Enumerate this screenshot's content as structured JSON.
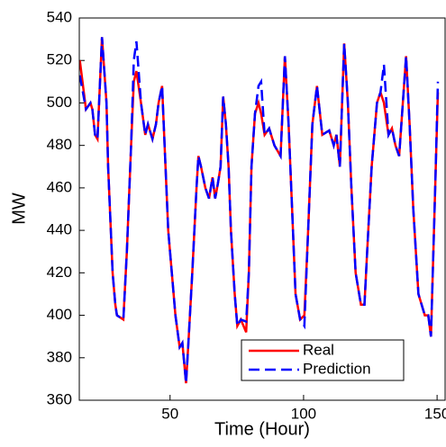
{
  "chart_data": {
    "type": "line",
    "xlabel": "Time (Hour)",
    "ylabel": "MW",
    "x": [
      16.2,
      18.5,
      20.2,
      20.9,
      21.9,
      22.8,
      24.5,
      26.2,
      26.8,
      28.5,
      29.5,
      30.1,
      32.5,
      33.8,
      35.4,
      36.4,
      37.4,
      39.1,
      40.7,
      41.7,
      43.4,
      44.7,
      45.7,
      47.0,
      48.3,
      49.3,
      52.0,
      53.6,
      54.6,
      56.0,
      57.0,
      58.3,
      59.9,
      60.6,
      61.6,
      63.2,
      64.6,
      65.9,
      66.9,
      67.9,
      68.9,
      69.9,
      70.9,
      71.9,
      72.8,
      74.2,
      75.2,
      76.5,
      78.5,
      79.5,
      80.5,
      81.8,
      83.1,
      84.1,
      85.4,
      87.1,
      89.1,
      91.4,
      93.0,
      94.4,
      95.7,
      97.0,
      98.7,
      100.3,
      101.7,
      103.3,
      105.0,
      107.0,
      109.6,
      111.3,
      112.3,
      113.6,
      115.2,
      116.6,
      117.9,
      119.5,
      121.5,
      122.8,
      123.8,
      125.5,
      127.5,
      128.8,
      130.1,
      131.8,
      133.1,
      134.4,
      135.8,
      138.4,
      139.7,
      141.1,
      143.0,
      145.4,
      146.7,
      147.7,
      149.3,
      150.3
    ],
    "series": [
      {
        "name": "Real",
        "color": "#ff0000",
        "dash": false,
        "values": [
          520,
          497,
          500,
          497,
          485,
          483,
          531,
          500,
          470,
          420,
          405,
          400,
          398,
          430,
          480,
          510,
          515,
          500,
          485,
          490,
          483,
          490,
          500,
          508,
          470,
          440,
          400,
          385,
          387,
          368,
          390,
          420,
          460,
          475,
          470,
          460,
          455,
          465,
          455,
          462,
          470,
          503,
          490,
          470,
          440,
          410,
          395,
          398,
          392,
          420,
          470,
          495,
          500,
          495,
          485,
          488,
          480,
          475,
          522,
          490,
          450,
          410,
          398,
          400,
          440,
          490,
          508,
          485,
          487,
          480,
          485,
          470,
          528,
          500,
          460,
          420,
          405,
          405,
          430,
          470,
          500,
          505,
          500,
          485,
          488,
          480,
          475,
          522,
          490,
          450,
          410,
          400,
          400,
          390,
          460,
          505
        ]
      },
      {
        "name": "Prediction",
        "color": "#0000ff",
        "dash": true,
        "values": [
          513,
          497,
          500,
          497,
          485,
          483,
          531,
          500,
          470,
          420,
          405,
          400,
          398,
          430,
          480,
          520,
          529,
          500,
          485,
          490,
          483,
          490,
          500,
          508,
          470,
          440,
          400,
          385,
          387,
          368,
          390,
          420,
          460,
          475,
          470,
          460,
          455,
          465,
          455,
          462,
          470,
          503,
          490,
          470,
          440,
          410,
          395,
          398,
          397,
          420,
          470,
          495,
          508,
          510,
          485,
          488,
          480,
          475,
          522,
          490,
          450,
          410,
          398,
          395,
          440,
          490,
          508,
          485,
          487,
          480,
          485,
          470,
          528,
          500,
          460,
          420,
          405,
          405,
          430,
          470,
          500,
          505,
          518,
          485,
          488,
          480,
          475,
          522,
          490,
          450,
          410,
          400,
          400,
          390,
          460,
          510
        ]
      }
    ],
    "xlim": [
      16,
      153
    ],
    "xticks": [
      50,
      100,
      150
    ],
    "ylim": [
      360,
      540
    ],
    "yticks": [
      360,
      380,
      400,
      420,
      440,
      460,
      480,
      500,
      520,
      540
    ],
    "legend": "lower right"
  }
}
